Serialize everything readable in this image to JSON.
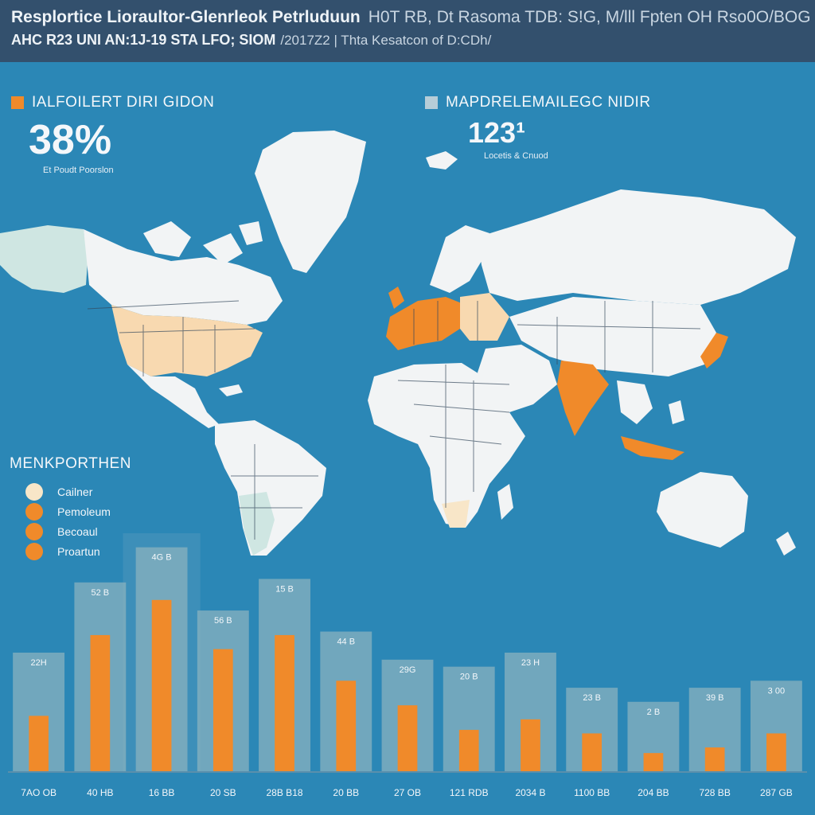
{
  "header": {
    "title": "Resplortice Lioraultor-Glenrleok Petrluduun",
    "title_extra": "H0T RB, Dt Rasoma TDB: S!G, M/lll Fpten OH Rso0O/BOG",
    "subtitle": "AHC R23 UNI AN:1J-19 STA LFO; SIOM",
    "subtitle_extra": "/2017Z2 | Thta Kesatcon of D:CDh/"
  },
  "stats": {
    "left": {
      "label": "IALFOILERT DIRI GIDON",
      "value": "38%",
      "caption": "Et Poudt Poorslon",
      "color": "#f08a2a"
    },
    "right": {
      "label": "MAPDRELEMAILEGC NIDIR",
      "value": "123¹",
      "caption": "Locetis & Cnuod",
      "color": "#b6cdd8"
    }
  },
  "legend": {
    "title": "MENKPORTHEN",
    "items": [
      {
        "label": "Cailner",
        "color": "#f8e6c8"
      },
      {
        "label": "Pemoleum",
        "color": "#f08a2a"
      },
      {
        "label": "Becoaul",
        "color": "#f08a2a"
      },
      {
        "label": "Proartun",
        "color": "#f08a2a"
      }
    ]
  },
  "colors": {
    "land": "#f2f4f5",
    "light_orange": "#f8d9b0",
    "orange": "#f08a2a",
    "teal": "#cfe6e2",
    "ocean": "#2b87b6"
  },
  "chart_data": {
    "type": "bar",
    "categories": [
      "7AO OB",
      "40 HB",
      "16 BB",
      "20 SB",
      "28B B18",
      "20 BB",
      "27 OB",
      "121 RDB",
      "2034 B",
      "1100 BB",
      "204 BB",
      "728 BB",
      "287 GB"
    ],
    "series": [
      {
        "values": [
          80,
          195,
          245,
          175,
          195,
          130,
          95,
          60,
          75,
          55,
          27,
          35,
          55
        ]
      },
      {
        "values": [
          170,
          270,
          320,
          230,
          275,
          200,
          160,
          150,
          170,
          120,
          100,
          120,
          130
        ]
      }
    ],
    "data_labels": [
      "22H",
      "52 B",
      "4G B",
      "56 B",
      "15 B",
      "44 B",
      "29G",
      "20 B",
      "23 H",
      "23 B",
      "2 B",
      "39 B",
      "3 00"
    ],
    "ylim": [
      0,
      340
    ]
  }
}
